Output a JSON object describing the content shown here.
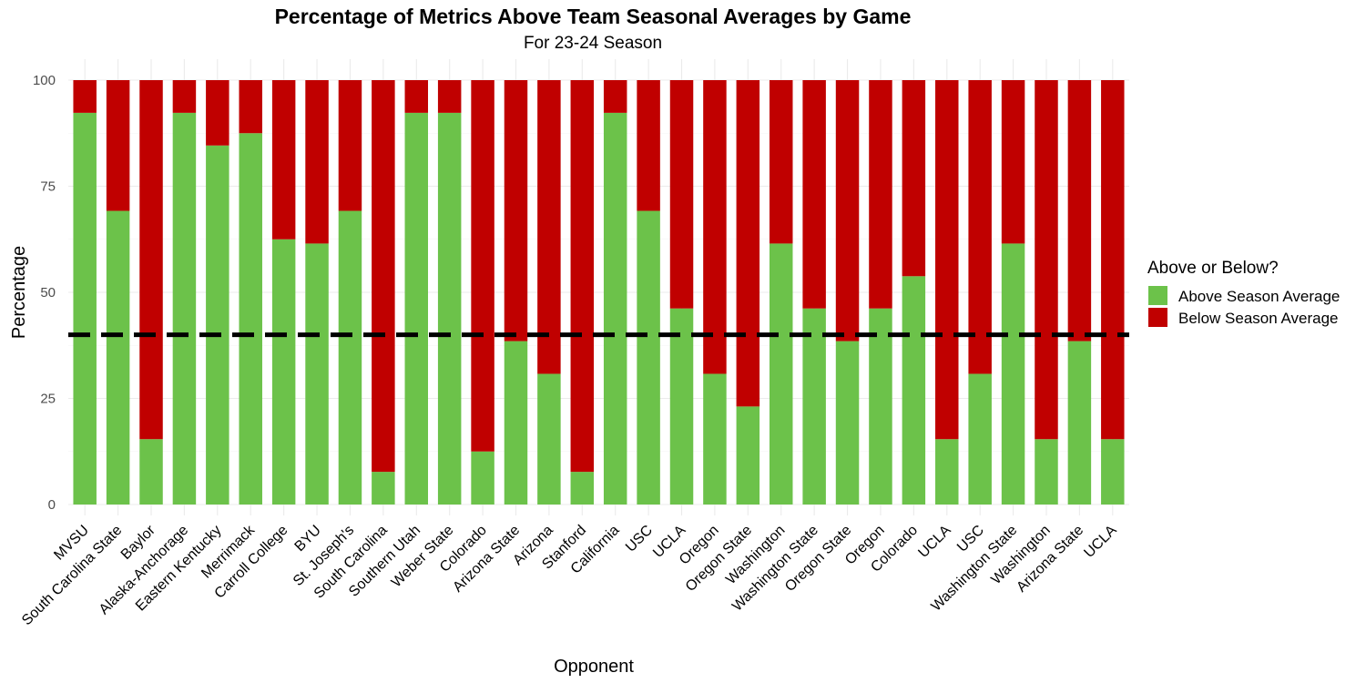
{
  "chart_data": {
    "type": "bar",
    "stacked": true,
    "title": "Percentage of Metrics Above Team Seasonal Averages by Game",
    "subtitle": "For 23-24 Season",
    "xlabel": "Opponent",
    "ylabel": "Percentage",
    "ylim": [
      0,
      100
    ],
    "yticks": [
      0,
      25,
      50,
      75,
      100
    ],
    "grid": true,
    "reference_line": {
      "y": 40,
      "style": "dashed",
      "color": "#000000"
    },
    "categories": [
      "MVSU",
      "South Carolina State",
      "Baylor",
      "Alaska-Anchorage",
      "Eastern Kentucky",
      "Merrimack",
      "Carroll College",
      "BYU",
      "St. Joseph's",
      "South Carolina",
      "Southern Utah",
      "Weber State",
      "Colorado",
      "Arizona State",
      "Arizona",
      "Stanford",
      "California",
      "USC",
      "UCLA",
      "Oregon",
      "Oregon State",
      "Washington",
      "Washington State",
      "Oregon State",
      "Oregon",
      "Colorado",
      "UCLA",
      "USC",
      "Washington State",
      "Washington",
      "Arizona State",
      "UCLA"
    ],
    "series": [
      {
        "name": "Above Season Average",
        "color": "#6cc24a",
        "values": [
          92.3,
          69.2,
          15.4,
          92.3,
          84.6,
          87.5,
          62.5,
          61.5,
          69.2,
          7.7,
          92.3,
          92.3,
          12.5,
          38.5,
          30.8,
          7.7,
          92.3,
          69.2,
          46.2,
          30.8,
          23.1,
          61.5,
          46.2,
          38.5,
          46.2,
          53.8,
          15.4,
          30.8,
          61.5,
          15.4,
          38.5,
          15.4
        ]
      },
      {
        "name": "Below Season Average",
        "color": "#c00000",
        "values": [
          7.7,
          30.8,
          84.6,
          7.7,
          15.4,
          12.5,
          37.5,
          38.5,
          30.8,
          92.3,
          7.7,
          7.7,
          87.5,
          61.5,
          69.2,
          92.3,
          7.7,
          30.8,
          53.8,
          69.2,
          76.9,
          38.5,
          53.8,
          61.5,
          53.8,
          46.2,
          84.6,
          69.2,
          38.5,
          84.6,
          61.5,
          84.6
        ]
      }
    ],
    "legend": {
      "title": "Above or Below?",
      "position": "right"
    }
  }
}
